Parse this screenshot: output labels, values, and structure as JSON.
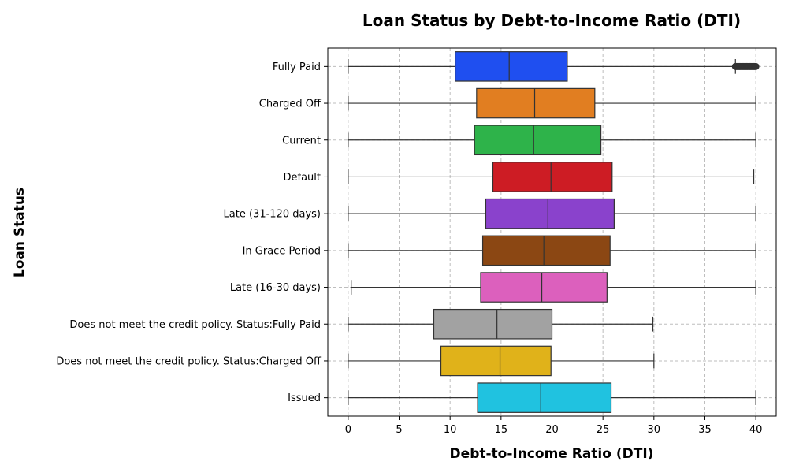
{
  "chart_data": {
    "type": "box",
    "orientation": "horizontal",
    "title": "Loan Status by Debt-to-Income Ratio (DTI)",
    "xlabel": "Debt-to-Income Ratio (DTI)",
    "ylabel": "Loan Status",
    "xlim": [
      -2,
      42
    ],
    "xticks": [
      0,
      5,
      10,
      15,
      20,
      25,
      30,
      35,
      40
    ],
    "grid": true,
    "categories": [
      "Fully Paid",
      "Charged Off",
      "Current",
      "Default",
      "Late (31-120 days)",
      "In Grace Period",
      "Late (16-30 days)",
      "Does not meet the credit policy. Status:Fully Paid",
      "Does not meet the credit policy. Status:Charged Off",
      "Issued"
    ],
    "boxes": [
      {
        "whisker_low": 0,
        "q1": 10.5,
        "median": 15.8,
        "q3": 21.5,
        "whisker_high": 38.0,
        "outliers_range": [
          38.0,
          40.0
        ],
        "color": "#1f4ff0"
      },
      {
        "whisker_low": 0,
        "q1": 12.6,
        "median": 18.3,
        "q3": 24.2,
        "whisker_high": 40.0,
        "color": "#e17e21"
      },
      {
        "whisker_low": 0,
        "q1": 12.4,
        "median": 18.2,
        "q3": 24.8,
        "whisker_high": 40.0,
        "color": "#2eb34a"
      },
      {
        "whisker_low": 0,
        "q1": 14.2,
        "median": 19.9,
        "q3": 25.9,
        "whisker_high": 39.8,
        "color": "#cd1c24"
      },
      {
        "whisker_low": 0,
        "q1": 13.5,
        "median": 19.6,
        "q3": 26.1,
        "whisker_high": 40.0,
        "color": "#8a42cc"
      },
      {
        "whisker_low": 0,
        "q1": 13.2,
        "median": 19.2,
        "q3": 25.7,
        "whisker_high": 40.0,
        "color": "#8b4713"
      },
      {
        "whisker_low": 0.3,
        "q1": 13.0,
        "median": 19.0,
        "q3": 25.4,
        "whisker_high": 40.0,
        "color": "#dc60bd"
      },
      {
        "whisker_low": 0,
        "q1": 8.4,
        "median": 14.6,
        "q3": 20.0,
        "whisker_high": 29.9,
        "color": "#a2a2a2"
      },
      {
        "whisker_low": 0,
        "q1": 9.1,
        "median": 14.9,
        "q3": 19.9,
        "whisker_high": 30.0,
        "color": "#e0b21a"
      },
      {
        "whisker_low": 0,
        "q1": 12.7,
        "median": 18.9,
        "q3": 25.8,
        "whisker_high": 40.0,
        "color": "#20c2e0"
      }
    ]
  }
}
